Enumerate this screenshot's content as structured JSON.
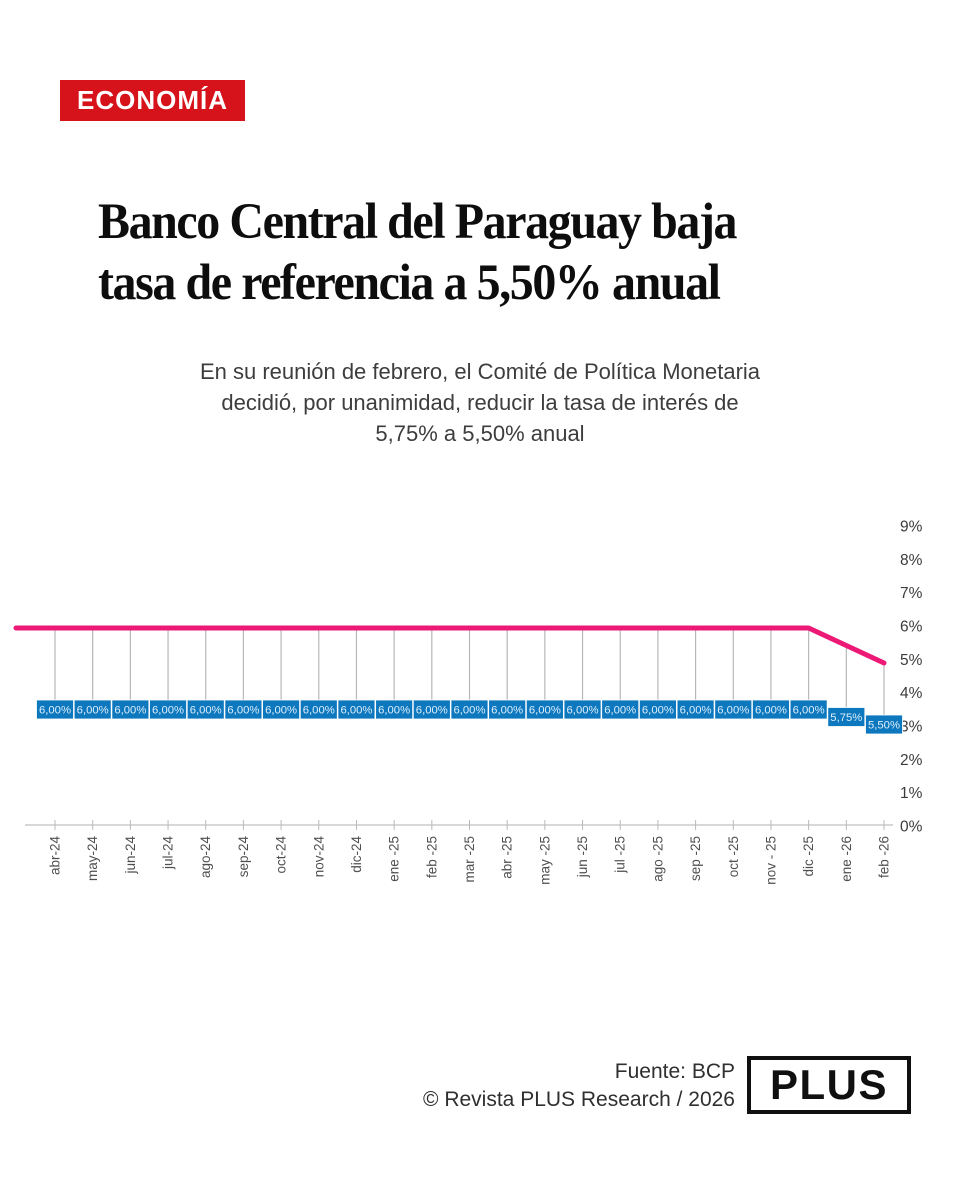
{
  "badge": {
    "label": "ECONOMÍA",
    "bg_color": "#d6121a",
    "text_color": "#ffffff"
  },
  "headline": {
    "line1": "Banco Central del Paraguay baja",
    "line2": "tasa de referencia a 5,50% anual"
  },
  "subtitle": {
    "lines": [
      "En su reunión de febrero, el Comité de Política Monetaria",
      "decidió, por unanimidad, reducir la tasa de interés de",
      "5,75% a 5,50% anual"
    ]
  },
  "chart_data": {
    "type": "line",
    "title": "",
    "xlabel": "",
    "ylabel": "",
    "x": [
      "abr-24",
      "may-24",
      "jun-24",
      "jul-24",
      "ago-24",
      "sep-24",
      "oct-24",
      "nov-24",
      "dic-24",
      "ene -25",
      "feb -25",
      "mar -25",
      "abr -25",
      "may -25",
      "jun -25",
      "jul -25",
      "ago -25",
      "sep -25",
      "oct -25",
      "nov - 25",
      "dic -25",
      "ene -26",
      "feb -26"
    ],
    "values": [
      6.0,
      6.0,
      6.0,
      6.0,
      6.0,
      6.0,
      6.0,
      6.0,
      6.0,
      6.0,
      6.0,
      6.0,
      6.0,
      6.0,
      6.0,
      6.0,
      6.0,
      6.0,
      6.0,
      6.0,
      6.0,
      5.75,
      5.5
    ],
    "point_labels": [
      "6,00%",
      "6,00%",
      "6,00%",
      "6,00%",
      "6,00%",
      "6,00%",
      "6,00%",
      "6,00%",
      "6,00%",
      "6,00%",
      "6,00%",
      "6,00%",
      "6,00%",
      "6,00%",
      "6,00%",
      "6,00%",
      "6,00%",
      "6,00%",
      "6,00%",
      "6,00%",
      "6,00%",
      "5,75%",
      "5,50%"
    ],
    "y_ticks": [
      "9%",
      "8%",
      "7%",
      "6%",
      "5%",
      "4%",
      "3%",
      "2%",
      "1%",
      "0%"
    ],
    "ylim": [
      0,
      9
    ],
    "y_axis_side": "right",
    "grid": false,
    "legend": "none",
    "line_color": "#ed1976",
    "label_bg_color": "#0e78bf",
    "label_text_color": "#ddeffb",
    "axis_color": "#cccccc",
    "leader_color": "#b7b7b7",
    "tick_label_color": "#4f4f4f"
  },
  "footer": {
    "source": "Fuente: BCP",
    "copyright": "© Revista PLUS Research / 2026",
    "logo": "PLUS"
  }
}
